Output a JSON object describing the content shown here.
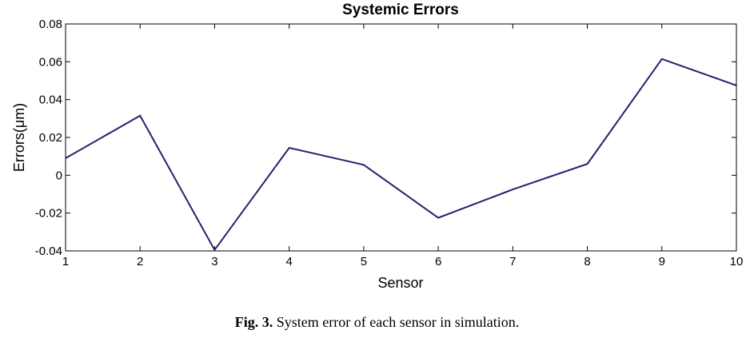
{
  "chart_data": {
    "type": "line",
    "title": "Systemic Errors",
    "xlabel": "Sensor",
    "ylabel": "Errors(μm)",
    "x": [
      1,
      2,
      3,
      4,
      5,
      6,
      7,
      8,
      9,
      10
    ],
    "series": [
      {
        "values": [
          0.009,
          0.0315,
          -0.0395,
          0.0145,
          0.0055,
          -0.0225,
          -0.0075,
          0.006,
          0.0615,
          0.0475
        ]
      }
    ],
    "xlim": [
      1,
      10
    ],
    "ylim": [
      -0.04,
      0.08
    ],
    "xticks": [
      "1",
      "2",
      "3",
      "4",
      "5",
      "6",
      "7",
      "8",
      "9",
      "10"
    ],
    "yticks": [
      "-0.04",
      "-0.02",
      "0",
      "0.02",
      "0.04",
      "0.06",
      "0.08"
    ],
    "ytick_values": [
      -0.04,
      -0.02,
      0,
      0.02,
      0.04,
      0.06,
      0.08
    ],
    "grid": false,
    "line_color": "#2b1f6e"
  },
  "caption": {
    "label": "Fig. 3.",
    "text": "System error of each sensor in simulation."
  }
}
